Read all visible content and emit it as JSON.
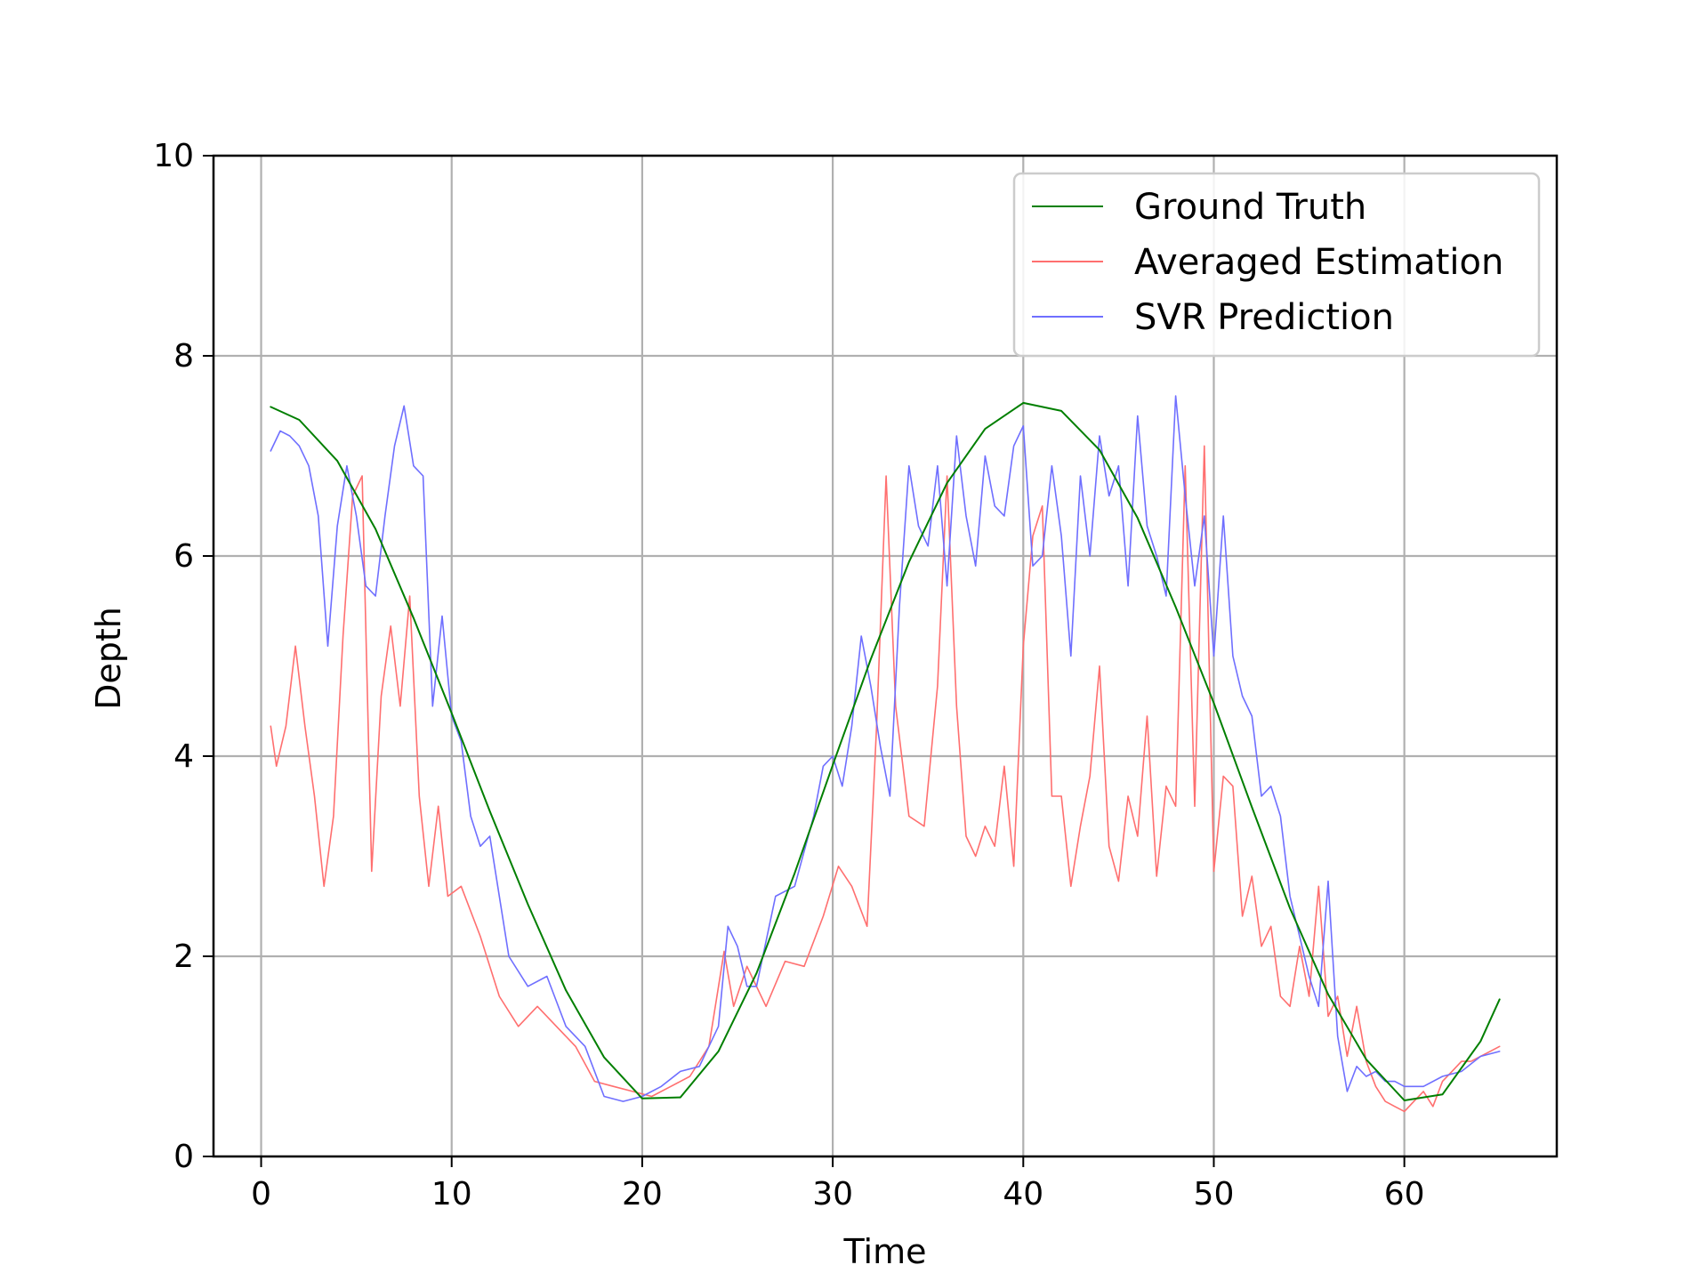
{
  "chart_data": {
    "type": "line",
    "title": "",
    "xlabel": "Time",
    "ylabel": "Depth",
    "xlim": [
      -2.5,
      68
    ],
    "ylim": [
      0,
      10
    ],
    "xticks": [
      0,
      10,
      20,
      30,
      40,
      50,
      60
    ],
    "yticks": [
      0,
      2,
      4,
      6,
      8,
      10
    ],
    "grid": true,
    "legend_position": "top-right",
    "series": [
      {
        "name": "Ground Truth",
        "color": "#007f00",
        "x": [
          0.5,
          2,
          4,
          6,
          8,
          10,
          12,
          14,
          16,
          18,
          20,
          22,
          24,
          26,
          28,
          30,
          32,
          34,
          36,
          38,
          40,
          42,
          44,
          46,
          48,
          50,
          52,
          54,
          56,
          58,
          60,
          62,
          64,
          65
        ],
        "y": [
          7.49,
          7.36,
          6.95,
          6.27,
          5.38,
          4.43,
          3.45,
          2.52,
          1.66,
          0.99,
          0.58,
          0.59,
          1.05,
          1.83,
          2.83,
          3.91,
          4.97,
          5.94,
          6.73,
          7.27,
          7.53,
          7.45,
          7.06,
          6.38,
          5.49,
          4.53,
          3.49,
          2.48,
          1.62,
          0.97,
          0.56,
          0.62,
          1.15,
          1.57
        ]
      },
      {
        "name": "Averaged Estimation",
        "color": "#ff6f6f",
        "x": [
          0.5,
          0.8,
          1.3,
          1.8,
          2.3,
          2.8,
          3.3,
          3.8,
          4.3,
          4.8,
          5.3,
          5.8,
          6.3,
          6.8,
          7.3,
          7.8,
          8.3,
          8.8,
          9.3,
          9.8,
          10.5,
          11.5,
          12.5,
          13.5,
          14.5,
          15.5,
          16.5,
          17.5,
          18.5,
          19.5,
          20.5,
          21.5,
          22.5,
          23.5,
          24.3,
          24.8,
          25.5,
          26.5,
          27.5,
          28.5,
          29.5,
          30.3,
          31,
          31.8,
          32.3,
          32.8,
          33.3,
          34,
          34.8,
          35.5,
          36,
          36.5,
          37,
          37.5,
          38,
          38.5,
          39,
          39.5,
          40,
          40.5,
          41,
          41.5,
          42,
          42.5,
          43,
          43.5,
          44,
          44.5,
          45,
          45.5,
          46,
          46.5,
          47,
          47.5,
          48,
          48.5,
          49,
          49.5,
          50,
          50.5,
          51,
          51.5,
          52,
          52.5,
          53,
          53.5,
          54,
          54.5,
          55,
          55.5,
          56,
          56.5,
          57,
          57.5,
          58,
          58.5,
          59,
          59.5,
          60,
          60.5,
          61,
          61.5,
          62,
          62.5,
          63,
          63.5,
          64,
          64.5,
          65
        ],
        "y": [
          4.3,
          3.9,
          4.3,
          5.1,
          4.3,
          3.6,
          2.7,
          3.4,
          5.2,
          6.6,
          6.8,
          2.85,
          4.6,
          5.3,
          4.5,
          5.6,
          3.6,
          2.7,
          3.5,
          2.6,
          2.7,
          2.2,
          1.6,
          1.3,
          1.5,
          1.3,
          1.1,
          0.75,
          0.7,
          0.65,
          0.6,
          0.7,
          0.8,
          1.1,
          2.05,
          1.5,
          1.9,
          1.5,
          1.95,
          1.9,
          2.4,
          2.9,
          2.7,
          2.3,
          4.3,
          6.8,
          4.5,
          3.4,
          3.3,
          4.7,
          6.8,
          4.5,
          3.2,
          3.0,
          3.3,
          3.1,
          3.9,
          2.9,
          5.1,
          6.2,
          6.5,
          3.6,
          3.6,
          2.7,
          3.3,
          3.8,
          4.9,
          3.1,
          2.75,
          3.6,
          3.2,
          4.4,
          2.8,
          3.7,
          3.5,
          6.9,
          3.5,
          7.1,
          2.85,
          3.8,
          3.7,
          2.4,
          2.8,
          2.1,
          2.3,
          1.6,
          1.5,
          2.1,
          1.6,
          2.7,
          1.4,
          1.6,
          1.0,
          1.5,
          0.95,
          0.7,
          0.55,
          0.5,
          0.45,
          0.55,
          0.65,
          0.5,
          0.75,
          0.85,
          0.95,
          0.95,
          1.0,
          1.05,
          1.1
        ]
      },
      {
        "name": "SVR Prediction",
        "color": "#6f6fff",
        "x": [
          0.5,
          1,
          1.5,
          2,
          2.5,
          3,
          3.5,
          4,
          4.5,
          5,
          5.5,
          6,
          6.5,
          7,
          7.5,
          8,
          8.5,
          9,
          9.5,
          10,
          10.5,
          11,
          11.5,
          12,
          13,
          14,
          15,
          16,
          17,
          18,
          19,
          20,
          21,
          22,
          23,
          24,
          24.5,
          25,
          25.5,
          26,
          27,
          28,
          29,
          29.5,
          30,
          30.5,
          31,
          31.5,
          32,
          32.5,
          33,
          33.5,
          34,
          34.5,
          35,
          35.5,
          36,
          36.5,
          37,
          37.5,
          38,
          38.5,
          39,
          39.5,
          40,
          40.5,
          41,
          41.5,
          42,
          42.5,
          43,
          43.5,
          44,
          44.5,
          45,
          45.5,
          46,
          46.5,
          47,
          47.5,
          48,
          48.5,
          49,
          49.5,
          50,
          50.5,
          51,
          51.5,
          52,
          52.5,
          53,
          53.5,
          54,
          54.5,
          55,
          55.5,
          56,
          56.5,
          57,
          57.5,
          58,
          58.5,
          59,
          59.5,
          60,
          61,
          62,
          63,
          64,
          65
        ],
        "y": [
          7.05,
          7.25,
          7.2,
          7.1,
          6.9,
          6.4,
          5.1,
          6.3,
          6.9,
          6.4,
          5.7,
          5.6,
          6.4,
          7.1,
          7.5,
          6.9,
          6.8,
          4.5,
          5.4,
          4.4,
          4.15,
          3.4,
          3.1,
          3.2,
          2.0,
          1.7,
          1.8,
          1.3,
          1.1,
          0.6,
          0.55,
          0.6,
          0.7,
          0.85,
          0.9,
          1.3,
          2.3,
          2.1,
          1.7,
          1.7,
          2.6,
          2.7,
          3.4,
          3.9,
          4.0,
          3.7,
          4.3,
          5.2,
          4.7,
          4.1,
          3.6,
          5.5,
          6.9,
          6.3,
          6.1,
          6.9,
          5.7,
          7.2,
          6.4,
          5.9,
          7.0,
          6.5,
          6.4,
          7.1,
          7.3,
          5.9,
          6.0,
          6.9,
          6.2,
          5.0,
          6.8,
          6.0,
          7.2,
          6.6,
          6.9,
          5.7,
          7.4,
          6.3,
          6.0,
          5.6,
          7.6,
          6.6,
          5.7,
          6.4,
          5.0,
          6.4,
          5.0,
          4.6,
          4.4,
          3.6,
          3.7,
          3.4,
          2.6,
          2.2,
          1.8,
          1.5,
          2.75,
          1.2,
          0.65,
          0.9,
          0.8,
          0.85,
          0.75,
          0.75,
          0.7,
          0.7,
          0.8,
          0.85,
          1.0,
          1.05
        ]
      }
    ]
  }
}
